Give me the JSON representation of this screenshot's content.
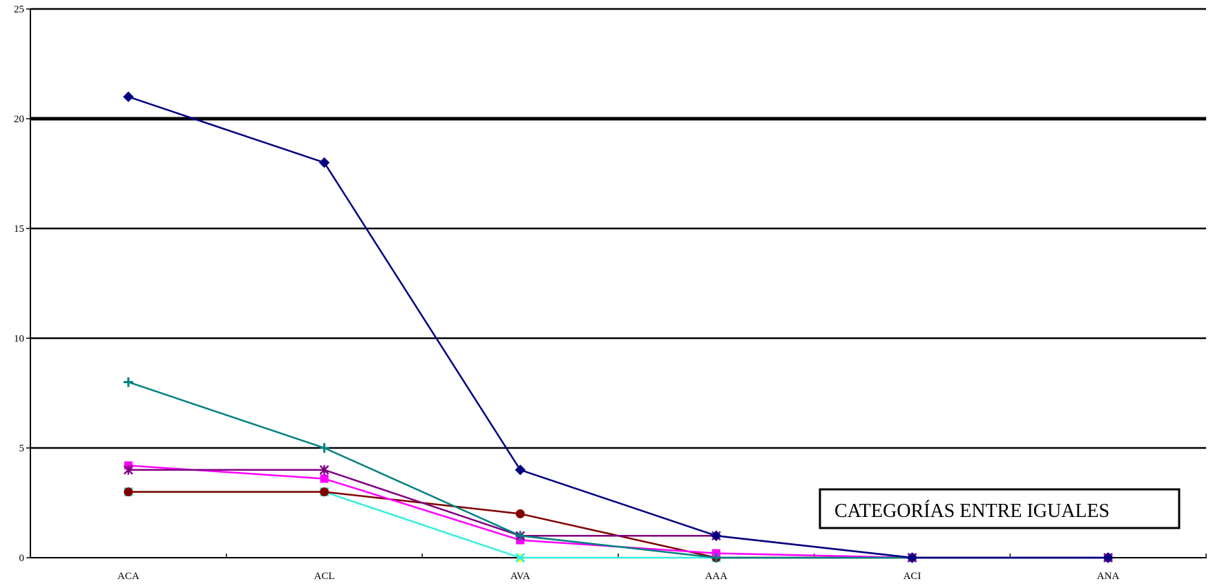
{
  "chart_data": {
    "type": "line",
    "title": "",
    "xlabel": "",
    "ylabel": "",
    "categories": [
      "ACA",
      "ACL",
      "AVA",
      "AAA",
      "ACI",
      "ANA"
    ],
    "ylim": [
      0,
      25
    ],
    "yticks": [
      0,
      5,
      10,
      15,
      20,
      25
    ],
    "grid": true,
    "annotation": "CATEGORÍAS ENTRE IGUALES",
    "series": [
      {
        "values": [
          3,
          3,
          0,
          0,
          0,
          0
        ],
        "color": "#ffff00",
        "marker": "triangle"
      },
      {
        "values": [
          3,
          3,
          0,
          0,
          0,
          0
        ],
        "color": "#33eeee",
        "marker": "x"
      },
      {
        "values": [
          3,
          3,
          2,
          0,
          0,
          0
        ],
        "color": "#800000",
        "marker": "circle"
      },
      {
        "values": [
          4.2,
          3.6,
          0.8,
          0.2,
          0,
          0
        ],
        "color": "#ff00ff",
        "marker": "square"
      },
      {
        "values": [
          4,
          4,
          1,
          1,
          0,
          0
        ],
        "color": "#800080",
        "marker": "star"
      },
      {
        "values": [
          8,
          5,
          1,
          0,
          0,
          0
        ],
        "color": "#008080",
        "marker": "plus"
      },
      {
        "values": [
          21,
          18,
          4,
          1,
          0,
          0
        ],
        "color": "#000080",
        "marker": "diamond"
      }
    ]
  }
}
